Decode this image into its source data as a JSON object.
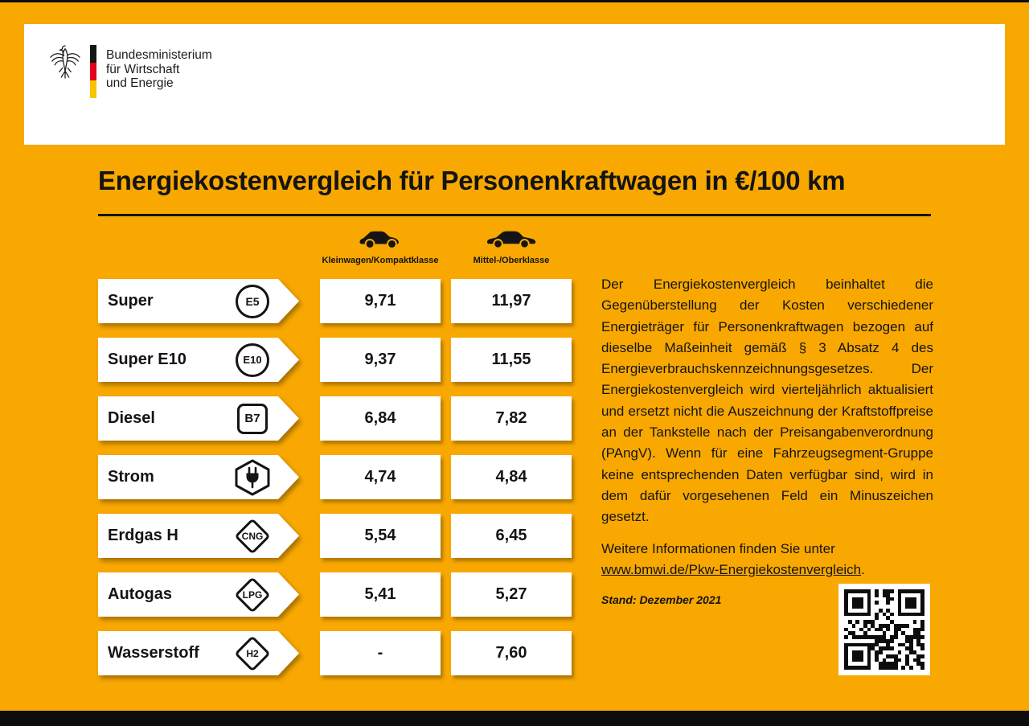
{
  "header": {
    "ministry_lines": [
      "Bundesministerium",
      "für Wirtschaft",
      "und Energie"
    ]
  },
  "title": "Energiekostenvergleich für Personenkraftwagen in €/100 km",
  "table": {
    "columns": [
      {
        "label": "Kleinwagen/Kompaktklasse",
        "icon": "compact-car-icon"
      },
      {
        "label": "Mittel-/Oberklasse",
        "icon": "sedan-car-icon"
      }
    ],
    "rows": [
      {
        "fuel": "Super",
        "badge": "E5",
        "badge_shape": "circle",
        "values": [
          "9,71",
          "11,97"
        ]
      },
      {
        "fuel": "Super E10",
        "badge": "E10",
        "badge_shape": "circle",
        "values": [
          "9,37",
          "11,55"
        ]
      },
      {
        "fuel": "Diesel",
        "badge": "B7",
        "badge_shape": "square",
        "values": [
          "6,84",
          "7,82"
        ]
      },
      {
        "fuel": "Strom",
        "badge": "electric-plug-icon",
        "badge_shape": "hexagon",
        "values": [
          "4,74",
          "4,84"
        ]
      },
      {
        "fuel": "Erdgas H",
        "badge": "CNG",
        "badge_shape": "diamond",
        "values": [
          "5,54",
          "6,45"
        ]
      },
      {
        "fuel": "Autogas",
        "badge": "LPG",
        "badge_shape": "diamond",
        "values": [
          "5,41",
          "5,27"
        ]
      },
      {
        "fuel": "Wasserstoff",
        "badge": "H2",
        "badge_shape": "diamond",
        "values": [
          "-",
          "7,60"
        ]
      }
    ]
  },
  "info": {
    "paragraph": "Der Energiekostenvergleich beinhaltet die Gegenüberstellung der Kosten verschiedener Energieträger für Personenkraftwagen bezogen auf dieselbe Maßeinheit gemäß § 3 Absatz 4 des Energieverbrauchskennzeichnungsgesetzes. Der Energiekostenvergleich wird vierteljährlich aktualisiert und ersetzt nicht die Auszeichnung der Kraftstoffpreise an der Tankstelle nach der Preisangabenverordnung (PAngV). Wenn für eine Fahrzeugsegment-Gruppe keine entsprechenden Daten verfügbar sind, wird in dem dafür vorgesehenen Feld ein Minuszeichen gesetzt.",
    "more_info_prefix": "Weitere Informationen finden Sie unter",
    "link_text": "www.bmwi.de/Pkw-Energiekostenvergleich",
    "link_suffix": ".",
    "stand": "Stand: Dezember 2021"
  },
  "colors": {
    "background": "#F8A800",
    "ink": "#141414",
    "flag_black": "#151515",
    "flag_red": "#E2001A",
    "flag_gold": "#F6C500"
  },
  "chart_data": {
    "type": "table",
    "title": "Energiekostenvergleich für Personenkraftwagen in €/100 km",
    "unit": "€/100 km",
    "categories": [
      "Super",
      "Super E10",
      "Diesel",
      "Strom",
      "Erdgas H",
      "Autogas",
      "Wasserstoff"
    ],
    "series": [
      {
        "name": "Kleinwagen/Kompaktklasse",
        "values": [
          9.71,
          9.37,
          6.84,
          4.74,
          5.54,
          5.41,
          null
        ]
      },
      {
        "name": "Mittel-/Oberklasse",
        "values": [
          11.97,
          11.55,
          7.82,
          4.84,
          6.45,
          5.27,
          7.6
        ]
      }
    ],
    "missing_value_marker": "-",
    "source_note": "Stand: Dezember 2021"
  }
}
